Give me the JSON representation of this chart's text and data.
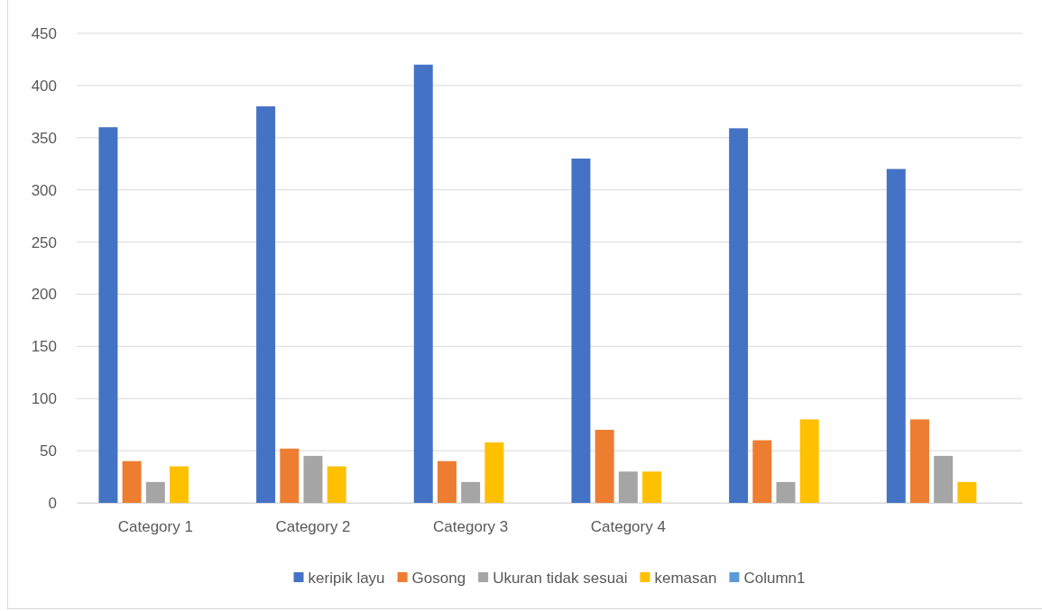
{
  "chart_data": {
    "type": "bar",
    "categories": [
      "Category 1",
      "Category 2",
      "Category 3",
      "Category 4",
      null,
      null
    ],
    "series": [
      {
        "name": "keripik layu",
        "color": "#4472c4",
        "values": [
          360,
          380,
          420,
          330,
          359,
          320
        ]
      },
      {
        "name": "Gosong",
        "color": "#ed7d31",
        "values": [
          40,
          52,
          40,
          70,
          60,
          80
        ]
      },
      {
        "name": "Ukuran tidak sesuai",
        "color": "#a5a5a5",
        "values": [
          20,
          45,
          20,
          30,
          20,
          45
        ]
      },
      {
        "name": "kemasan",
        "color": "#ffc000",
        "values": [
          35,
          35,
          58,
          30,
          80,
          20
        ]
      },
      {
        "name": "Column1",
        "color": "#5b9bd5",
        "values": [
          null,
          null,
          null,
          null,
          null,
          null
        ]
      }
    ],
    "ylim": [
      0,
      450
    ],
    "yticks": [
      0,
      50,
      100,
      150,
      200,
      250,
      300,
      350,
      400,
      450
    ],
    "grid": "y",
    "legend": "bottom"
  }
}
